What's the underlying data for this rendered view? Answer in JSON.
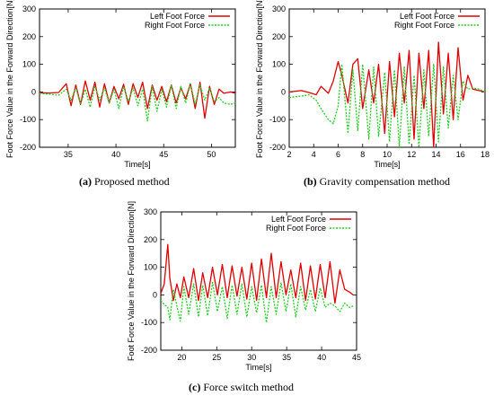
{
  "captions": [
    {
      "tag": "(a)",
      "text": "Proposed method"
    },
    {
      "tag": "(b)",
      "text": "Gravity compensation method"
    },
    {
      "tag": "(c)",
      "text": "Force switch method"
    }
  ],
  "colors": {
    "left": "#e00000",
    "right": "#22cc22",
    "axis": "#000000"
  },
  "chart_data": [
    {
      "type": "line",
      "xlabel": "Time[s]",
      "ylabel": "Foot Force Value in the Forward Direction[N]",
      "xlim": [
        32,
        52.5
      ],
      "ylim": [
        -200,
        300
      ],
      "xticks": [
        35,
        40,
        45,
        50
      ],
      "yticks": [
        -200,
        -100,
        0,
        100,
        200,
        300
      ],
      "legend_position": "top-right",
      "grid": false,
      "series": [
        {
          "name": "Left Foot Force",
          "style": "solid",
          "x": [
            32,
            33,
            34,
            34.8,
            35.3,
            35.8,
            36.3,
            36.8,
            37.3,
            37.8,
            38.3,
            38.8,
            39.3,
            39.8,
            40.3,
            40.8,
            41.3,
            41.8,
            42.3,
            42.8,
            43.3,
            43.8,
            44.3,
            44.8,
            45.3,
            45.8,
            46.3,
            46.8,
            47.3,
            47.8,
            48.3,
            48.8,
            49.3,
            49.8,
            50.3,
            50.8,
            51.3,
            52,
            52.5
          ],
          "y": [
            -3,
            -4,
            -2,
            30,
            -50,
            25,
            -45,
            40,
            -30,
            35,
            -55,
            30,
            -40,
            20,
            -25,
            28,
            -45,
            30,
            -20,
            35,
            -60,
            25,
            -30,
            20,
            -35,
            25,
            -40,
            15,
            -25,
            30,
            -60,
            35,
            -95,
            20,
            -45,
            10,
            -5,
            0,
            -5
          ]
        },
        {
          "name": "Right Foot Force",
          "style": "dotted",
          "x": [
            32,
            33,
            34,
            34.8,
            35.3,
            35.8,
            36.3,
            36.8,
            37.3,
            37.8,
            38.3,
            38.8,
            39.3,
            39.8,
            40.3,
            40.8,
            41.3,
            41.8,
            42.3,
            42.8,
            43.3,
            43.8,
            44.3,
            44.8,
            45.3,
            45.8,
            46.3,
            46.8,
            47.3,
            47.8,
            48.3,
            48.8,
            49.3,
            49.8,
            50.3,
            50.8,
            51.3,
            52,
            52.5
          ],
          "y": [
            -5,
            -8,
            -12,
            10,
            -30,
            15,
            -45,
            10,
            -55,
            20,
            -30,
            15,
            -40,
            10,
            -60,
            20,
            -35,
            15,
            -50,
            10,
            -105,
            20,
            -70,
            10,
            -55,
            25,
            -60,
            20,
            -40,
            30,
            -45,
            25,
            -30,
            15,
            -35,
            -20,
            -40,
            -45,
            -40
          ]
        }
      ]
    },
    {
      "type": "line",
      "xlabel": "Time[s]",
      "ylabel": "Foot Force Value in the Forward Direction[N]",
      "xlim": [
        2,
        18
      ],
      "ylim": [
        -200,
        300
      ],
      "xticks": [
        2,
        4,
        6,
        8,
        10,
        12,
        14,
        16,
        18
      ],
      "yticks": [
        -200,
        -100,
        0,
        100,
        200,
        300
      ],
      "legend_position": "top-right",
      "grid": false,
      "series": [
        {
          "name": "Left Foot Force",
          "style": "solid",
          "x": [
            2,
            3,
            3.6,
            4.2,
            4.6,
            5.2,
            5.6,
            6.0,
            6.3,
            6.8,
            7.2,
            7.6,
            8.0,
            8.5,
            8.9,
            9.3,
            9.8,
            10.2,
            10.6,
            11.0,
            11.4,
            11.8,
            12.2,
            12.6,
            13.0,
            13.4,
            13.8,
            14.2,
            14.6,
            15.0,
            15.4,
            15.8,
            16.2,
            16.6,
            17.0,
            17.5,
            18
          ],
          "y": [
            0,
            5,
            -2,
            -10,
            20,
            -5,
            40,
            110,
            60,
            -40,
            100,
            120,
            -60,
            80,
            -40,
            100,
            -150,
            110,
            -90,
            140,
            -40,
            150,
            -170,
            140,
            -60,
            150,
            -200,
            180,
            -80,
            140,
            -100,
            160,
            -30,
            60,
            10,
            5,
            0
          ]
        },
        {
          "name": "Right Foot Force",
          "style": "dotted",
          "x": [
            2,
            3,
            3.6,
            4.2,
            4.6,
            5.2,
            5.6,
            6.0,
            6.3,
            6.8,
            7.2,
            7.6,
            8.0,
            8.5,
            8.9,
            9.3,
            9.8,
            10.2,
            10.6,
            11.0,
            11.4,
            11.8,
            12.2,
            12.6,
            13.0,
            13.4,
            13.8,
            14.2,
            14.6,
            15.0,
            15.4,
            15.8,
            16.2,
            16.6,
            17.0,
            17.5,
            18
          ],
          "y": [
            -20,
            -15,
            -10,
            -30,
            -60,
            -100,
            -115,
            -50,
            100,
            -150,
            80,
            -140,
            100,
            -170,
            90,
            -160,
            70,
            -180,
            80,
            -200,
            90,
            -190,
            60,
            -200,
            80,
            -160,
            100,
            -180,
            90,
            -130,
            60,
            -100,
            40,
            10,
            15,
            10,
            0
          ]
        }
      ]
    },
    {
      "type": "line",
      "xlabel": "Time[s]",
      "ylabel": "Foot Force Value in the Forward Direction[N]",
      "xlim": [
        17,
        45
      ],
      "ylim": [
        -200,
        300
      ],
      "xticks": [
        20,
        25,
        30,
        35,
        40,
        45
      ],
      "yticks": [
        -200,
        -100,
        0,
        100,
        200,
        300
      ],
      "legend_position": "top-right",
      "grid": false,
      "series": [
        {
          "name": "Left Foot Force",
          "style": "solid",
          "x": [
            17,
            17.5,
            18,
            18.3,
            18.8,
            19.3,
            19.8,
            20.3,
            21,
            21.7,
            22.4,
            23,
            23.7,
            24.4,
            25.1,
            25.8,
            26.5,
            27.2,
            27.9,
            28.6,
            29.3,
            30,
            30.7,
            31.4,
            32.1,
            32.8,
            33.5,
            34.2,
            34.9,
            35.6,
            36.3,
            37,
            37.7,
            38.4,
            39.1,
            39.8,
            40.5,
            41.2,
            41.9,
            42.6,
            43.3,
            44,
            44.5
          ],
          "y": [
            5,
            40,
            182,
            60,
            -20,
            40,
            -10,
            65,
            -10,
            95,
            -20,
            80,
            -10,
            100,
            0,
            110,
            -10,
            105,
            -5,
            100,
            -15,
            115,
            -20,
            130,
            -10,
            150,
            -10,
            120,
            0,
            90,
            -10,
            115,
            -20,
            105,
            -15,
            110,
            -10,
            120,
            -30,
            90,
            20,
            10,
            0
          ]
        },
        {
          "name": "Right Foot Force",
          "style": "dotted",
          "x": [
            17,
            17.5,
            18,
            18.3,
            18.8,
            19.3,
            19.8,
            20.3,
            21,
            21.7,
            22.4,
            23,
            23.7,
            24.4,
            25.1,
            25.8,
            26.5,
            27.2,
            27.9,
            28.6,
            29.3,
            30,
            30.7,
            31.4,
            32.1,
            32.8,
            33.5,
            34.2,
            34.9,
            35.6,
            36.3,
            37,
            37.7,
            38.4,
            39.1,
            39.8,
            40.5,
            41.2,
            41.9,
            42.6,
            43.3,
            44,
            44.5
          ],
          "y": [
            -20,
            -35,
            -45,
            -90,
            20,
            -40,
            -95,
            30,
            -70,
            40,
            -80,
            35,
            -75,
            45,
            -60,
            30,
            -85,
            35,
            -70,
            40,
            -80,
            30,
            -65,
            35,
            -100,
            30,
            -70,
            45,
            -60,
            40,
            -80,
            30,
            -55,
            20,
            -60,
            25,
            -45,
            -30,
            -40,
            -60,
            -30,
            -45,
            -40
          ]
        }
      ]
    }
  ]
}
